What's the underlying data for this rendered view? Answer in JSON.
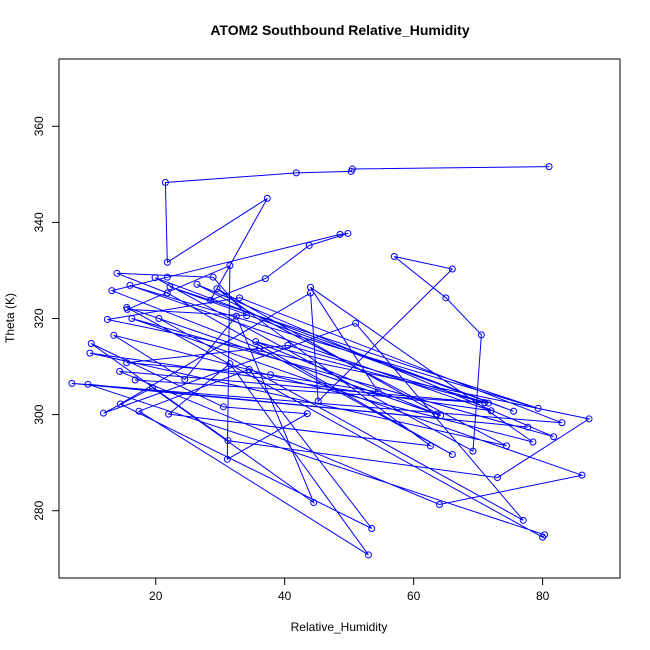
{
  "chart_data": {
    "type": "line",
    "title": "ATOM2 Southbound Relative_Humidity",
    "xlabel": "Relative_Humidity",
    "ylabel": "Theta (K)",
    "xlim": [
      5,
      92
    ],
    "ylim": [
      266,
      374
    ],
    "xticks": [
      20,
      40,
      60,
      80
    ],
    "yticks": [
      280,
      300,
      320,
      340,
      360
    ],
    "grid": false,
    "series": [
      {
        "color": "#0000ff",
        "marker": "open-circle",
        "x": [
          81,
          50.5,
          50.3,
          41.8,
          21.5,
          21.8,
          37.3,
          28.5,
          37,
          43.8,
          49.8,
          48.6,
          21.8,
          13.2,
          36.1,
          66,
          21.8,
          14,
          28.9,
          34.1,
          15.6,
          31.5,
          31.1,
          43.5,
          30.5,
          10,
          31.2,
          73,
          87.2,
          12.5,
          33,
          83,
          7,
          77.7,
          9.5,
          80.3,
          80,
          15.5,
          63.6,
          35.5,
          71,
          14.4,
          64,
          86.1,
          16.3,
          81.7,
          26.4,
          74.4,
          9.8,
          72,
          16,
          79.3,
          22.2,
          75.5,
          19.9,
          69.2,
          70.5,
          65,
          57,
          66,
          45.2,
          44,
          14.5,
          53.5,
          34.5,
          17.4,
          53,
          31.5,
          22,
          62.6,
          29.5,
          64.2,
          20.5,
          77,
          51,
          11.9,
          19.5,
          44.5,
          32.5,
          24.5,
          13.5,
          78.5,
          44,
          54.5,
          37.8,
          15.5,
          40.5,
          71.6,
          16.8
        ],
        "y": [
          351.6,
          351.1,
          350.6,
          350.3,
          348.3,
          331.7,
          345,
          323.8,
          328.3,
          335.2,
          337.7,
          337.5,
          328.6,
          325.8,
          313.8,
          291.7,
          325.3,
          329.4,
          328.6,
          320.6,
          321.9,
          331,
          290.7,
          300.2,
          301.6,
          314.8,
          294.6,
          286.9,
          299.1,
          319.8,
          324.3,
          298.3,
          306.5,
          297.4,
          306.3,
          275,
          274.5,
          322.3,
          300.1,
          315.2,
          302.5,
          309,
          281.3,
          287.4,
          320,
          295.4,
          327.1,
          293.5,
          312.8,
          300.8,
          326.9,
          301.3,
          326.6,
          300.7,
          328.5,
          292.4,
          316.6,
          324.3,
          332.9,
          330.3,
          302.8,
          325.3,
          302.2,
          276.3,
          309.4,
          300.7,
          270.8,
          310.6,
          300.1,
          293.5,
          326.2,
          299.8,
          320,
          278,
          319,
          300.3,
          305.6,
          281.7,
          320.5,
          307.3,
          316.5,
          294.3,
          326.5,
          304.7,
          308.3,
          310.8,
          314.4,
          302.4,
          307.2
        ]
      }
    ]
  }
}
